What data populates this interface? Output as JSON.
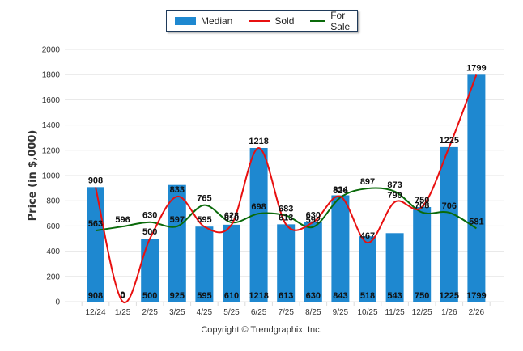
{
  "chart_data": {
    "type": "bar",
    "title": "",
    "xlabel": "",
    "ylabel": "Price (in $,000)",
    "ylim": [
      0,
      2000
    ],
    "yticks": [
      0,
      200,
      400,
      600,
      800,
      1000,
      1200,
      1400,
      1600,
      1800,
      2000
    ],
    "grid": true,
    "legend_position": "top-center",
    "categories": [
      "12/24",
      "1/25",
      "2/25",
      "3/25",
      "4/25",
      "5/25",
      "6/25",
      "7/25",
      "8/25",
      "9/25",
      "10/25",
      "11/25",
      "12/25",
      "1/26",
      "2/26"
    ],
    "series": [
      {
        "name": "Median",
        "kind": "bar",
        "color": "#1e88d0",
        "values": [
          908,
          0,
          500,
          925,
          595,
          610,
          1218,
          613,
          630,
          843,
          518,
          543,
          750,
          1225,
          1799
        ]
      },
      {
        "name": "Sold",
        "kind": "line",
        "color": "#e81010",
        "values": [
          908,
          0,
          500,
          833,
          595,
          610,
          1218,
          613,
          630,
          834,
          467,
          790,
          750,
          1225,
          1799
        ]
      },
      {
        "name": "For Sale",
        "kind": "line",
        "color": "#0a6a0a",
        "values": [
          563,
          596,
          630,
          597,
          765,
          628,
          698,
          683,
          592,
          826,
          897,
          873,
          708,
          706,
          581
        ]
      }
    ]
  },
  "legend": {
    "median_label": "Median",
    "sold_label": "Sold",
    "forsale_label": "For Sale"
  },
  "footer": {
    "copyright": "Copyright © Trendgraphix, Inc."
  }
}
